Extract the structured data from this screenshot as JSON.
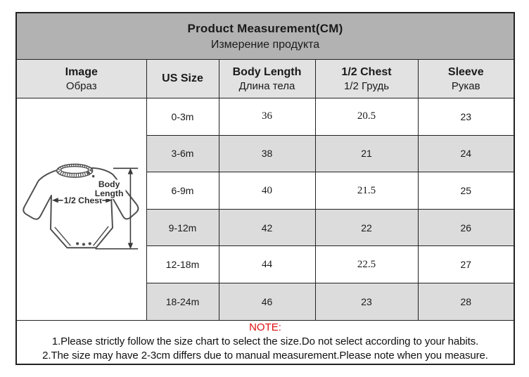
{
  "chart_data": {
    "type": "table",
    "title": "Product Measurement(CM)",
    "subtitle_ru": "Измерение продукта",
    "columns": [
      {
        "en": "Image",
        "ru": "Образ"
      },
      {
        "en": "US Size",
        "ru": ""
      },
      {
        "en": "Body Length",
        "ru": "Длина тела"
      },
      {
        "en": "1/2 Chest",
        "ru": "1/2 Грудь"
      },
      {
        "en": "Sleeve",
        "ru": "Рукав"
      }
    ],
    "rows": [
      {
        "us_size": "0-3m",
        "body_length": 36,
        "half_chest": 20.5,
        "sleeve": 23
      },
      {
        "us_size": "3-6m",
        "body_length": 38,
        "half_chest": 21,
        "sleeve": 24
      },
      {
        "us_size": "6-9m",
        "body_length": 40,
        "half_chest": 21.5,
        "sleeve": 25
      },
      {
        "us_size": "9-12m",
        "body_length": 42,
        "half_chest": 22,
        "sleeve": 26
      },
      {
        "us_size": "12-18m",
        "body_length": 44,
        "half_chest": 22.5,
        "sleeve": 27
      },
      {
        "us_size": "18-24m",
        "body_length": 46,
        "half_chest": 23,
        "sleeve": 28
      }
    ],
    "units": "CM",
    "legend_position": "none",
    "grid": true
  },
  "diagram": {
    "half_chest_label": "1/2 Chest",
    "body_length_label": "Body Length",
    "body_length_lines": [
      "Body",
      "Length"
    ]
  },
  "note": {
    "heading": "NOTE:",
    "lines": [
      "1.Please strictly follow the size chart to select the size.Do not select according to your habits.",
      "2.The size may have 2-3cm differs due to manual measurement.Please note when you measure."
    ]
  },
  "colors": {
    "title_bg": "#b2b2b2",
    "header_bg": "#e2e2e2",
    "stripe_bg": "#dcdcdc",
    "note_red": "#e01010",
    "border": "#222222"
  }
}
